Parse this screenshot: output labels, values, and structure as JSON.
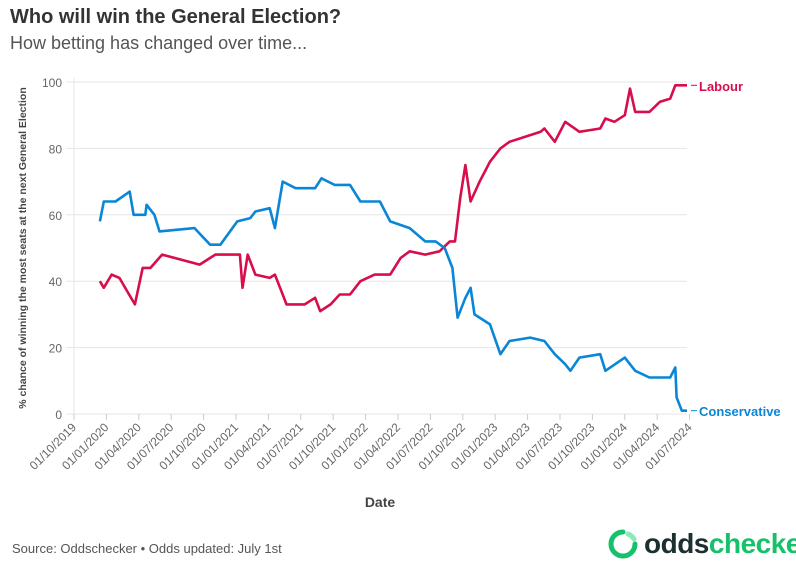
{
  "header": {
    "title": "Who will win the General Election?",
    "subtitle": "How betting has changed over time..."
  },
  "footer": {
    "source": "Source: Oddschecker • Odds updated: July 1st",
    "logo_text_a": "odds",
    "logo_text_b": "checker"
  },
  "colors": {
    "labour": "#d80e4c",
    "conservative": "#0a86d6",
    "grid": "#e6e6e6"
  },
  "chart_data": {
    "type": "line",
    "title": "Who will win the General Election?",
    "subtitle": "How betting has changed over time...",
    "xlabel": "Date",
    "ylabel": "% chance of winning the most seats at the next General Election",
    "ylim": [
      0,
      100
    ],
    "xlim": [
      2019.75,
      2024.48
    ],
    "yticks": [
      "0",
      "20",
      "40",
      "60",
      "80",
      "100"
    ],
    "xticks": [
      "01/10/2019",
      "01/01/2020",
      "01/04/2020",
      "01/07/2020",
      "01/10/2020",
      "01/01/2021",
      "01/04/2021",
      "01/07/2021",
      "01/10/2021",
      "01/01/2022",
      "01/04/2022",
      "01/07/2022",
      "01/10/2022",
      "01/01/2023",
      "01/04/2023",
      "01/07/2023",
      "01/10/2023",
      "01/01/2024",
      "01/04/2024",
      "01/07/2024"
    ],
    "grid": true,
    "legend": "end-of-line labels",
    "series": [
      {
        "name": "Labour",
        "x": [
          2019.95,
          2019.98,
          2020.04,
          2020.1,
          2020.22,
          2020.28,
          2020.34,
          2020.43,
          2020.72,
          2020.84,
          2021.03,
          2021.05,
          2021.09,
          2021.15,
          2021.26,
          2021.3,
          2021.35,
          2021.39,
          2021.53,
          2021.61,
          2021.65,
          2021.73,
          2021.8,
          2021.88,
          2021.96,
          2022.07,
          2022.19,
          2022.27,
          2022.34,
          2022.46,
          2022.57,
          2022.65,
          2022.69,
          2022.73,
          2022.77,
          2022.81,
          2022.88,
          2022.96,
          2023.04,
          2023.11,
          2023.27,
          2023.35,
          2023.38,
          2023.46,
          2023.54,
          2023.65,
          2023.81,
          2023.85,
          2023.92,
          2024.0,
          2024.04,
          2024.08,
          2024.19,
          2024.27,
          2024.35,
          2024.39,
          2024.48
        ],
        "y": [
          40,
          38,
          42,
          41,
          33,
          44,
          44,
          48,
          45,
          48,
          48,
          38,
          48,
          42,
          41,
          42,
          37,
          33,
          33,
          35,
          31,
          33,
          36,
          36,
          40,
          42,
          42,
          47,
          49,
          48,
          49,
          52,
          52,
          65,
          75,
          64,
          70,
          76,
          80,
          82,
          84,
          85,
          86,
          82,
          88,
          85,
          86,
          89,
          88,
          90,
          98,
          91,
          91,
          94,
          95,
          99,
          99
        ]
      },
      {
        "name": "Conservative",
        "x": [
          2019.95,
          2019.98,
          2020.07,
          2020.18,
          2020.21,
          2020.3,
          2020.31,
          2020.37,
          2020.41,
          2020.68,
          2020.8,
          2020.88,
          2021.01,
          2021.11,
          2021.15,
          2021.26,
          2021.3,
          2021.36,
          2021.46,
          2021.61,
          2021.66,
          2021.76,
          2021.88,
          2021.96,
          2022.11,
          2022.19,
          2022.34,
          2022.46,
          2022.54,
          2022.61,
          2022.67,
          2022.71,
          2022.77,
          2022.81,
          2022.84,
          2022.96,
          2023.04,
          2023.11,
          2023.27,
          2023.38,
          2023.46,
          2023.54,
          2023.58,
          2023.65,
          2023.81,
          2023.85,
          2024.0,
          2024.08,
          2024.19,
          2024.35,
          2024.39,
          2024.4,
          2024.44,
          2024.48
        ],
        "y": [
          58,
          64,
          64,
          67,
          60,
          60,
          63,
          60,
          55,
          56,
          51,
          51,
          58,
          59,
          61,
          62,
          56,
          70,
          68,
          68,
          71,
          69,
          69,
          64,
          64,
          58,
          56,
          52,
          52,
          50,
          44,
          29,
          35,
          38,
          30,
          27,
          18,
          22,
          23,
          22,
          18,
          15,
          13,
          17,
          18,
          13,
          17,
          13,
          11,
          11,
          14,
          5,
          1,
          1
        ]
      }
    ]
  }
}
